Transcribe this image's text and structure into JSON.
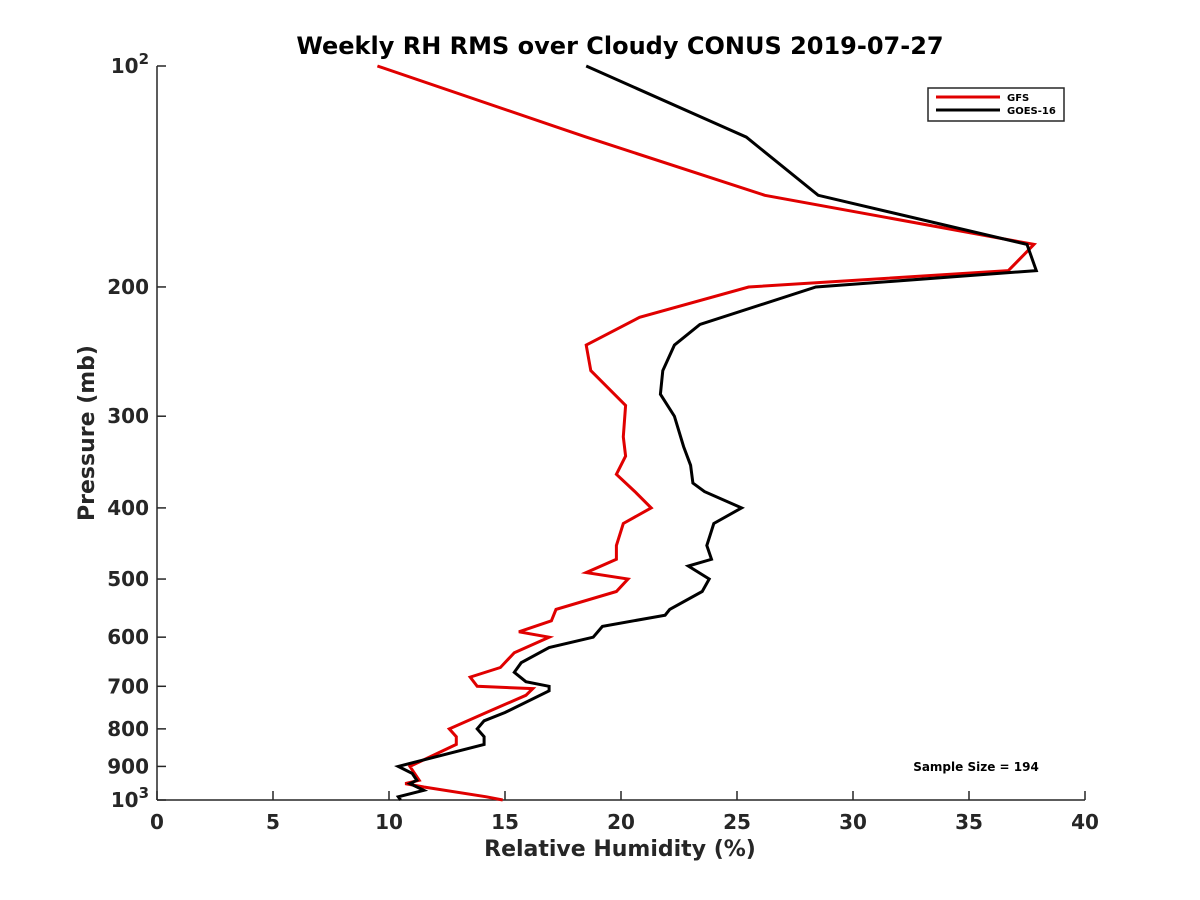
{
  "chart_data": {
    "type": "line",
    "title": "Weekly RH RMS over Cloudy CONUS 2019-07-27",
    "xlabel": "Relative Humidity (%)",
    "ylabel": "Pressure (mb)",
    "xlim": [
      0,
      40
    ],
    "ylim": [
      100,
      1000
    ],
    "y_scale": "log",
    "y_reversed": true,
    "x_ticks": [
      "0",
      "5",
      "10",
      "15",
      "20",
      "25",
      "30",
      "35",
      "40"
    ],
    "y_ticks": [
      {
        "value": 100,
        "label": "10",
        "sup": "2"
      },
      {
        "value": 200,
        "label": "200",
        "sup": ""
      },
      {
        "value": 300,
        "label": "300",
        "sup": ""
      },
      {
        "value": 400,
        "label": "400",
        "sup": ""
      },
      {
        "value": 500,
        "label": "500",
        "sup": ""
      },
      {
        "value": 600,
        "label": "600",
        "sup": ""
      },
      {
        "value": 700,
        "label": "700",
        "sup": ""
      },
      {
        "value": 800,
        "label": "800",
        "sup": ""
      },
      {
        "value": 900,
        "label": "900",
        "sup": ""
      },
      {
        "value": 1000,
        "label": "10",
        "sup": "3"
      }
    ],
    "legend": {
      "position": "top-right"
    },
    "annotation": "Sample Size = 194",
    "series": [
      {
        "name": "GFS",
        "color": "#e00000",
        "points": [
          [
            9.5,
            100
          ],
          [
            18.5,
            125
          ],
          [
            26.2,
            150
          ],
          [
            37.8,
            175
          ],
          [
            36.7,
            190
          ],
          [
            25.5,
            200
          ],
          [
            20.8,
            220
          ],
          [
            18.5,
            240
          ],
          [
            18.7,
            260
          ],
          [
            20.2,
            290
          ],
          [
            20.1,
            320
          ],
          [
            20.2,
            340
          ],
          [
            19.8,
            360
          ],
          [
            20.6,
            380
          ],
          [
            21.3,
            400
          ],
          [
            20.1,
            420
          ],
          [
            19.8,
            450
          ],
          [
            19.8,
            470
          ],
          [
            18.5,
            490
          ],
          [
            20.3,
            500
          ],
          [
            19.8,
            520
          ],
          [
            17.2,
            550
          ],
          [
            17.0,
            570
          ],
          [
            15.6,
            590
          ],
          [
            16.9,
            600
          ],
          [
            15.4,
            630
          ],
          [
            14.8,
            660
          ],
          [
            13.5,
            680
          ],
          [
            13.8,
            700
          ],
          [
            16.2,
            705
          ],
          [
            15.9,
            720
          ],
          [
            14.2,
            760
          ],
          [
            12.6,
            800
          ],
          [
            12.9,
            820
          ],
          [
            12.9,
            840
          ],
          [
            10.9,
            900
          ],
          [
            11.3,
            940
          ],
          [
            10.7,
            950
          ],
          [
            11.5,
            960
          ],
          [
            14.2,
            990
          ],
          [
            14.9,
            1000
          ]
        ]
      },
      {
        "name": "GOES-16",
        "color": "#000000",
        "points": [
          [
            18.5,
            100
          ],
          [
            25.4,
            125
          ],
          [
            28.5,
            150
          ],
          [
            37.5,
            175
          ],
          [
            37.9,
            190
          ],
          [
            28.4,
            200
          ],
          [
            23.4,
            225
          ],
          [
            22.3,
            240
          ],
          [
            21.8,
            260
          ],
          [
            21.7,
            280
          ],
          [
            22.3,
            300
          ],
          [
            22.7,
            330
          ],
          [
            23.0,
            350
          ],
          [
            23.1,
            370
          ],
          [
            23.6,
            380
          ],
          [
            25.2,
            400
          ],
          [
            24.0,
            420
          ],
          [
            23.7,
            450
          ],
          [
            23.9,
            470
          ],
          [
            22.9,
            480
          ],
          [
            23.8,
            500
          ],
          [
            23.5,
            520
          ],
          [
            22.1,
            550
          ],
          [
            21.9,
            560
          ],
          [
            19.2,
            580
          ],
          [
            18.8,
            600
          ],
          [
            16.9,
            620
          ],
          [
            15.7,
            650
          ],
          [
            15.4,
            670
          ],
          [
            15.9,
            690
          ],
          [
            16.9,
            700
          ],
          [
            16.9,
            710
          ],
          [
            15.0,
            760
          ],
          [
            14.1,
            780
          ],
          [
            13.8,
            800
          ],
          [
            14.1,
            820
          ],
          [
            14.1,
            840
          ],
          [
            10.4,
            900
          ],
          [
            11.0,
            920
          ],
          [
            11.2,
            940
          ],
          [
            10.9,
            950
          ],
          [
            11.5,
            970
          ],
          [
            10.4,
            990
          ],
          [
            10.5,
            1000
          ]
        ]
      }
    ]
  }
}
